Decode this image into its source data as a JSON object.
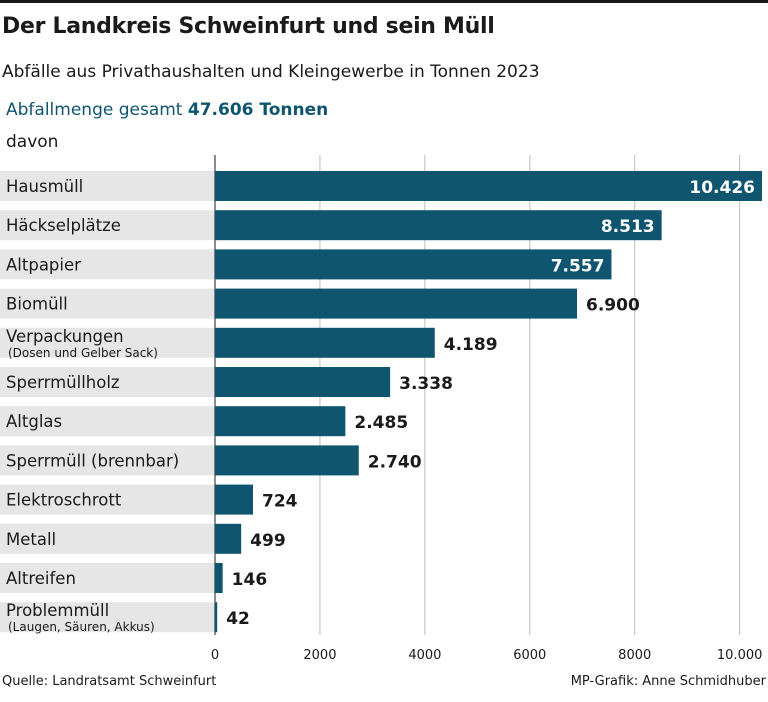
{
  "header": {
    "title": "Der Landkreis Schweinfurt und sein Müll",
    "subtitle": "Abfälle aus Privathaushalten und Kleingewerbe in Tonnen 2023",
    "total_label": "Abfallmenge gesamt",
    "total_value": "47.606 Tonnen",
    "davon": "davon"
  },
  "footer": {
    "source": "Quelle: Landratsamt Schweinfurt",
    "credit": "MP-Grafik: Anne Schmidhuber"
  },
  "colors": {
    "bar": "#0f5570",
    "label_band": "#e6e6e6",
    "grid": "#bdbdbd",
    "value_inside": "#ffffff",
    "value_outside": "#1a1a1a"
  },
  "chart_data": {
    "type": "bar",
    "orientation": "horizontal",
    "categories": [
      {
        "label": "Hausmüll",
        "sub": ""
      },
      {
        "label": "Häckselplätze",
        "sub": ""
      },
      {
        "label": "Altpapier",
        "sub": ""
      },
      {
        "label": "Biomüll",
        "sub": ""
      },
      {
        "label": "Verpackungen",
        "sub": "(Dosen und Gelber Sack)"
      },
      {
        "label": "Sperrmüllholz",
        "sub": ""
      },
      {
        "label": "Altglas",
        "sub": ""
      },
      {
        "label": "Sperrmüll (brennbar)",
        "sub": ""
      },
      {
        "label": "Elektroschrott",
        "sub": ""
      },
      {
        "label": "Metall",
        "sub": ""
      },
      {
        "label": "Altreifen",
        "sub": ""
      },
      {
        "label": "Problemmüll",
        "sub": "(Laugen, Säuren, Akkus)"
      }
    ],
    "values": [
      10426,
      8513,
      7557,
      6900,
      4189,
      3338,
      2485,
      2740,
      724,
      499,
      146,
      42
    ],
    "value_labels": [
      "10.426",
      "8.513",
      "7.557",
      "6.900",
      "4.189",
      "3.338",
      "2.485",
      "2.740",
      "724",
      "499",
      "146",
      "42"
    ],
    "label_inside": [
      true,
      true,
      true,
      false,
      false,
      false,
      false,
      false,
      false,
      false,
      false,
      false
    ],
    "xlim": [
      0,
      10426
    ],
    "x_ticks": [
      0,
      2000,
      4000,
      6000,
      8000,
      10000
    ],
    "x_tick_labels": [
      "0",
      "2000",
      "4000",
      "6000",
      "8000",
      "10.000"
    ],
    "grid": true
  }
}
